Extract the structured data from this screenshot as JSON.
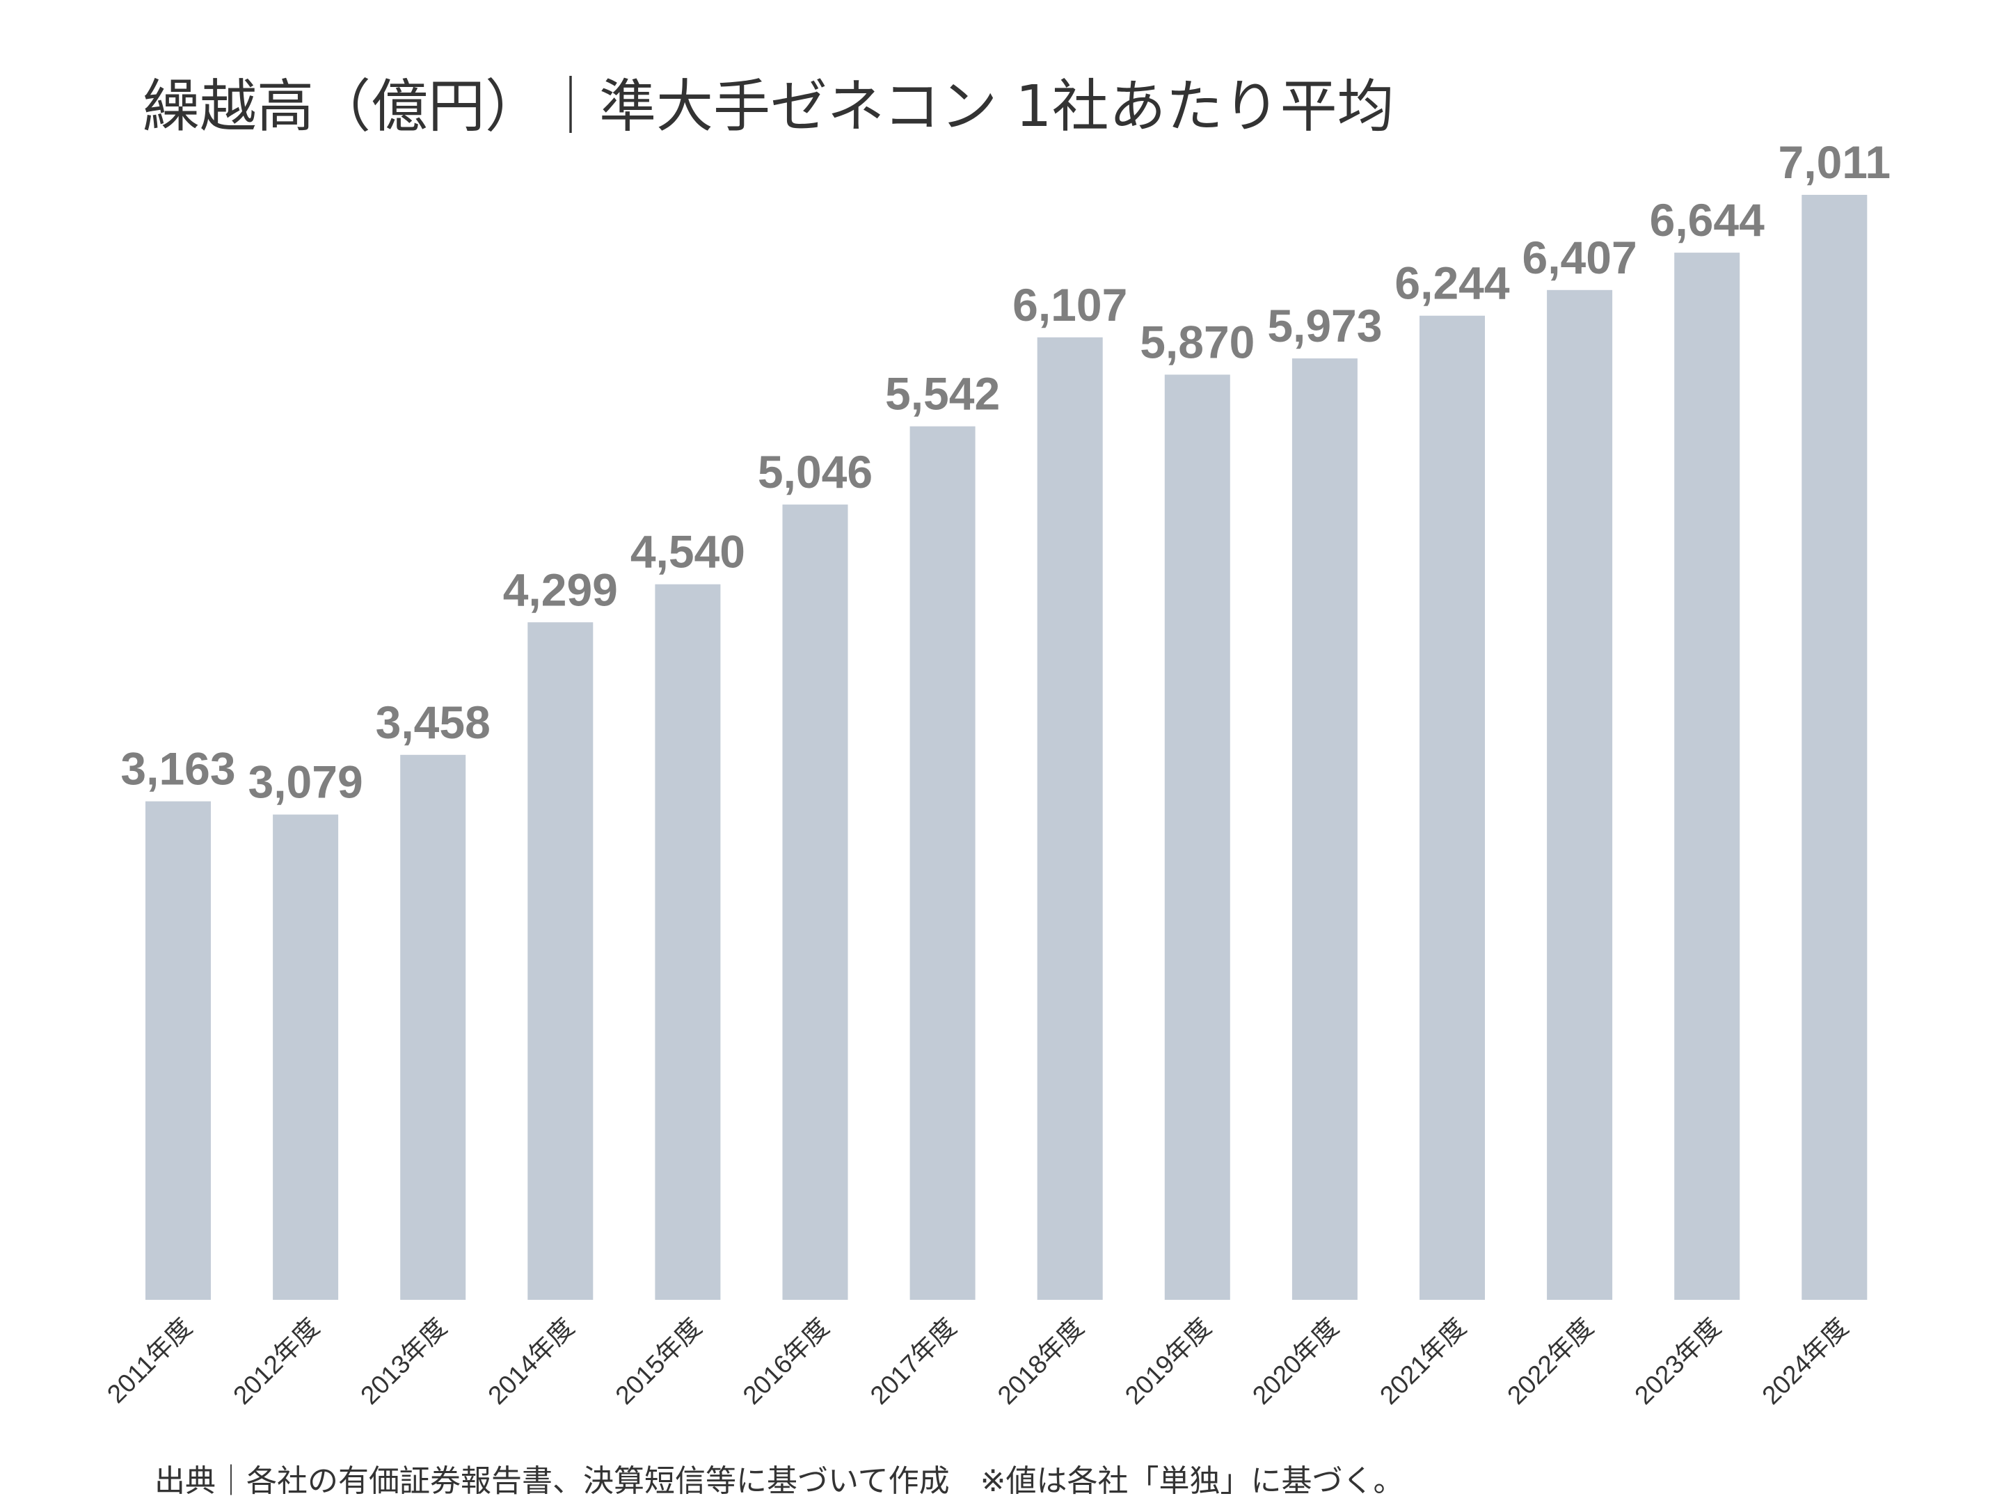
{
  "chart_data": {
    "type": "bar",
    "title": "繰越高（億円）｜準大手ゼネコン 1社あたり平均",
    "categories": [
      "2011年度",
      "2012年度",
      "2013年度",
      "2014年度",
      "2015年度",
      "2016年度",
      "2017年度",
      "2018年度",
      "2019年度",
      "2020年度",
      "2021年度",
      "2022年度",
      "2023年度",
      "2024年度"
    ],
    "values": [
      3163,
      3079,
      3458,
      4299,
      4540,
      5046,
      5542,
      6107,
      5870,
      5973,
      6244,
      6407,
      6644,
      7011
    ],
    "value_labels": [
      "3,163",
      "3,079",
      "3,458",
      "4,299",
      "4,540",
      "5,046",
      "5,542",
      "6,107",
      "5,870",
      "5,973",
      "6,244",
      "6,407",
      "6,644",
      "7,011"
    ],
    "xlabel": "",
    "ylabel": "",
    "ylim": [
      0,
      7011
    ],
    "grid": false,
    "legend": "none",
    "bar_color": "#c2cbd6",
    "label_color": "#7f7f7f",
    "source": "出典｜各社の有価証券報告書、決算短信等に基づいて作成　※値は各社「単独」に基づく。"
  }
}
